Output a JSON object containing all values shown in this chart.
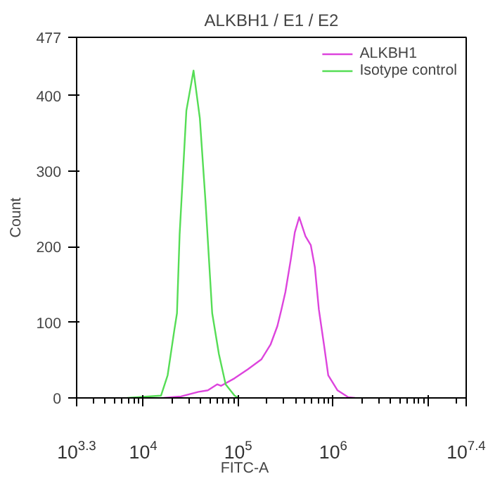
{
  "chart_data": {
    "type": "line",
    "title": "ALKBH1 / E1 / E2",
    "xlabel": "FITC-A",
    "ylabel": "Count",
    "log": "x",
    "xlim": [
      1995.26,
      25118864.3
    ],
    "ylim": [
      0,
      477
    ],
    "xticks": [
      {
        "value": 1995.26,
        "label": "10$^{3.3}$"
      },
      {
        "value": 10000,
        "label": "10$^{4}$"
      },
      {
        "value": 100000,
        "label": "10$^{5}$"
      },
      {
        "value": 1000000,
        "label": "10$^{6}$"
      },
      {
        "value": 10000000,
        "label": null
      },
      {
        "value": 25118864.3,
        "label": "10$^{7.4}$"
      }
    ],
    "yticks": [
      0,
      100,
      200,
      300,
      400,
      477
    ],
    "grid": false,
    "legend": "top right",
    "marker": "none",
    "line_style": "solid",
    "series": [
      {
        "name": "ALKBH1",
        "color": "#dd44dd",
        "x": [
          16400,
          25000,
          38200,
          47900,
          60100,
          66200,
          91700,
          126800,
          175400,
          219900,
          258600,
          285200,
          314000,
          357700,
          394700,
          438900,
          510600,
          581500,
          641300,
          706700,
          805000,
          887000,
          1112000,
          1441000,
          1698000
        ],
        "values": [
          0,
          2,
          8,
          10,
          18,
          16,
          26,
          38,
          51,
          71,
          95,
          117,
          140,
          183,
          219,
          239,
          214,
          202,
          173,
          117,
          68,
          30,
          10,
          1,
          0
        ]
      },
      {
        "name": "Isotype control",
        "color": "#55dd55",
        "x": [
          6800,
          15400,
          18100,
          21300,
          22700,
          24200,
          28500,
          33900,
          39500,
          45300,
          53300,
          62700,
          73800,
          91700,
          101000
        ],
        "values": [
          0,
          3,
          30,
          90,
          112,
          216,
          380,
          433,
          370,
          260,
          112,
          58,
          18,
          3,
          0
        ]
      }
    ]
  }
}
